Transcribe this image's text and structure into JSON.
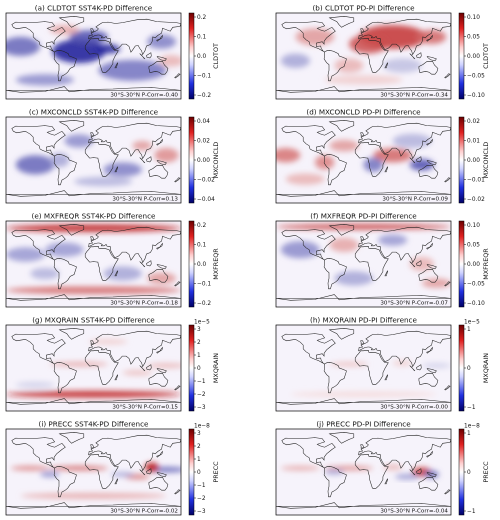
{
  "figure": {
    "panels": [
      {
        "title": "(a) CLDTOT SST4K-PD Difference",
        "cbar_label": "CLDTOT",
        "ticks": [
          "0.2",
          "0.1",
          "0.0",
          "−0.1",
          "−0.2"
        ],
        "exponent": "",
        "corr": "30°S-30°N P-Corr=-0.40"
      },
      {
        "title": "(b) CLDTOT PD-PI Difference",
        "cbar_label": "CLDTOT",
        "ticks": [
          "0.10",
          "0.05",
          "0.00",
          "−0.05",
          "−0.10"
        ],
        "exponent": "",
        "corr": "30°S-30°N P-Corr=-0.34"
      },
      {
        "title": "(c) MXCONCLD SST4K-PD Difference",
        "cbar_label": "MXCONCLD",
        "ticks": [
          "0.04",
          "0.02",
          "0.00",
          "−0.02",
          "−0.04"
        ],
        "exponent": "",
        "corr": "30°S-30°N P-Corr=0.13"
      },
      {
        "title": "(d) MXCONCLD PD-PI Difference",
        "cbar_label": "MXCONCLD",
        "ticks": [
          "0.02",
          "0.01",
          "0.00",
          "−0.01",
          "−0.02"
        ],
        "exponent": "",
        "corr": "30°S-30°N P-Corr=0.09"
      },
      {
        "title": "(e) MXFREQR SST4K-PD Difference",
        "cbar_label": "MXFREQR",
        "ticks": [
          "0.2",
          "0.1",
          "0.0",
          "−0.1",
          "−0.2"
        ],
        "exponent": "",
        "corr": "30°S-30°N P-Corr=-0.18"
      },
      {
        "title": "(f) MXFREQR PD-PI Difference",
        "cbar_label": "MXFREQR",
        "ticks": [
          "0.10",
          "0.05",
          "0.00",
          "−0.05",
          "−0.10"
        ],
        "exponent": "",
        "corr": "30°S-30°N P-Corr=-0.07"
      },
      {
        "title": "(g) MXQRAIN SST4K-PD Difference",
        "cbar_label": "MXQRAIN",
        "ticks": [
          "3",
          "2",
          "1",
          "0",
          "−1",
          "−2",
          "−3"
        ],
        "exponent": "1e−5",
        "corr": "30°S-30°N P-Corr=0.15"
      },
      {
        "title": "(h) MXQRAIN PD-PI Difference",
        "cbar_label": "MXQRAIN",
        "ticks": [
          "1",
          "0",
          "−1"
        ],
        "exponent": "1e−5",
        "corr": "30°S-30°N P-Corr=-0.00"
      },
      {
        "title": "(i) PRECC SST4K-PD Difference",
        "cbar_label": "PRECC",
        "ticks": [
          "3",
          "2",
          "1",
          "0",
          "−1",
          "−2",
          "−3"
        ],
        "exponent": "1e−8",
        "corr": "30°S-30°N P-Corr=-0.02"
      },
      {
        "title": "(j) PRECC PD-PI Difference",
        "cbar_label": "PRECC",
        "ticks": [
          "1",
          "0",
          "−1"
        ],
        "exponent": "1e−8",
        "corr": "30°S-30°N P-Corr=-0.04"
      }
    ]
  },
  "colors": {
    "positive": "#b40000",
    "neutral": "#ffffff",
    "negative": "#00008b",
    "coast": "#222222"
  },
  "chart_data": [
    {
      "type": "heatmap",
      "title": "(a) CLDTOT SST4K-PD Difference",
      "colorbar_label": "CLDTOT",
      "colorbar_range": [
        -0.2,
        0.2
      ],
      "colorbar_ticks": [
        0.2,
        0.1,
        0.0,
        -0.1,
        -0.2
      ],
      "annotation": "30°S-30°N P-Corr=-0.40",
      "pattern": "mostly negative, strong negative over tropical Atlantic/Africa"
    },
    {
      "type": "heatmap",
      "title": "(b) CLDTOT PD-PI Difference",
      "colorbar_label": "CLDTOT",
      "colorbar_range": [
        -0.1,
        0.1
      ],
      "colorbar_ticks": [
        0.1,
        0.05,
        0.0,
        -0.05,
        -0.1
      ],
      "annotation": "30°S-30°N P-Corr=-0.34",
      "pattern": "positive northern hemisphere / Eurasia"
    },
    {
      "type": "heatmap",
      "title": "(c) MXCONCLD SST4K-PD Difference",
      "colorbar_label": "MXCONCLD",
      "colorbar_range": [
        -0.04,
        0.04
      ],
      "colorbar_ticks": [
        0.04,
        0.02,
        0.0,
        -0.02,
        -0.04
      ],
      "annotation": "30°S-30°N P-Corr=0.13",
      "pattern": "weak, mixed"
    },
    {
      "type": "heatmap",
      "title": "(d) MXCONCLD PD-PI Difference",
      "colorbar_label": "MXCONCLD",
      "colorbar_range": [
        -0.02,
        0.02
      ],
      "colorbar_ticks": [
        0.02,
        0.01,
        0.0,
        -0.01,
        -0.02
      ],
      "annotation": "30°S-30°N P-Corr=0.09",
      "pattern": "mixed red/blue"
    },
    {
      "type": "heatmap",
      "title": "(e) MXFREQR SST4K-PD Difference",
      "colorbar_label": "MXFREQR",
      "colorbar_range": [
        -0.2,
        0.2
      ],
      "colorbar_ticks": [
        0.2,
        0.1,
        0.0,
        -0.1,
        -0.2
      ],
      "annotation": "30°S-30°N P-Corr=-0.18",
      "pattern": "positive high latitudes"
    },
    {
      "type": "heatmap",
      "title": "(f) MXFREQR PD-PI Difference",
      "colorbar_label": "MXFREQR",
      "colorbar_range": [
        -0.1,
        0.1
      ],
      "colorbar_ticks": [
        0.1,
        0.05,
        0.0,
        -0.05,
        -0.1
      ],
      "annotation": "30°S-30°N P-Corr=-0.07",
      "pattern": "positive Arctic band, mixed elsewhere"
    },
    {
      "type": "heatmap",
      "title": "(g) MXQRAIN SST4K-PD Difference",
      "colorbar_label": "MXQRAIN",
      "colorbar_range": [
        -3e-05,
        3e-05
      ],
      "colorbar_ticks": [
        3,
        2,
        1,
        0,
        -1,
        -2,
        -3
      ],
      "colorbar_scale": "1e-5",
      "annotation": "30°S-30°N P-Corr=0.15",
      "pattern": "strong positive Southern Ocean band"
    },
    {
      "type": "heatmap",
      "title": "(h) MXQRAIN PD-PI Difference",
      "colorbar_label": "MXQRAIN",
      "colorbar_range": [
        -1.5e-05,
        1.5e-05
      ],
      "colorbar_ticks": [
        1,
        0,
        -1
      ],
      "colorbar_scale": "1e-5",
      "annotation": "30°S-30°N P-Corr=-0.00",
      "pattern": "weak"
    },
    {
      "type": "heatmap",
      "title": "(i) PRECC SST4K-PD Difference",
      "colorbar_label": "PRECC",
      "colorbar_range": [
        -3e-08,
        3e-08
      ],
      "colorbar_ticks": [
        3,
        2,
        1,
        0,
        -1,
        -2,
        -3
      ],
      "colorbar_scale": "1e-8",
      "annotation": "30°S-30°N P-Corr=-0.02",
      "pattern": "tropical positive/negative dipoles"
    },
    {
      "type": "heatmap",
      "title": "(j) PRECC PD-PI Difference",
      "colorbar_label": "PRECC",
      "colorbar_range": [
        -1.5e-08,
        1.5e-08
      ],
      "colorbar_ticks": [
        1,
        0,
        -1
      ],
      "colorbar_scale": "1e-8",
      "annotation": "30°S-30°N P-Corr=-0.04",
      "pattern": "tropical mixed"
    }
  ]
}
